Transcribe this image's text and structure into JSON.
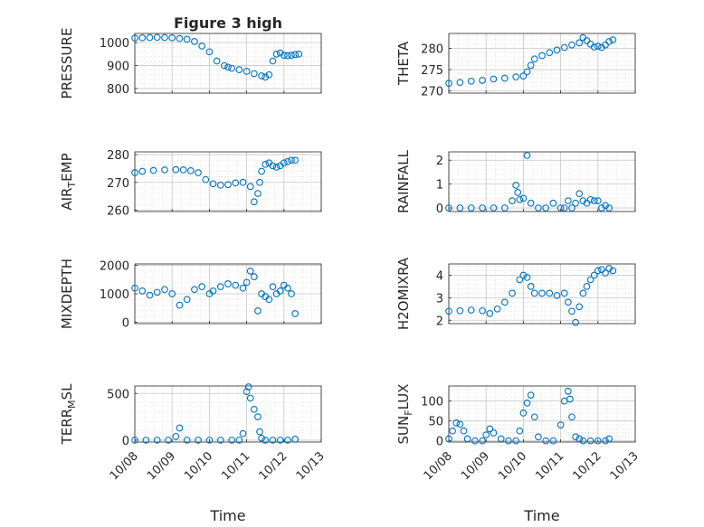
{
  "figure": {
    "title": "Figure 3 high",
    "xlabel": "Time",
    "marker_color": "#0072BD",
    "x_tick_labels": [
      "10/08",
      "10/09",
      "10/10",
      "10/11",
      "10/12",
      "10/13"
    ]
  },
  "chart_data": [
    {
      "type": "scatter",
      "title": "Figure 3 high",
      "ylabel": "PRESSURE",
      "ylim": [
        780,
        1040
      ],
      "yticks": [
        800,
        900,
        1000
      ],
      "xlim": [
        0,
        5
      ],
      "grid": true,
      "x": [
        0.0,
        0.2,
        0.4,
        0.6,
        0.8,
        1.0,
        1.2,
        1.4,
        1.6,
        1.8,
        2.0,
        2.2,
        2.4,
        2.5,
        2.6,
        2.8,
        3.0,
        3.2,
        3.4,
        3.5,
        3.6,
        3.7,
        3.8,
        3.9,
        4.0,
        4.1,
        4.2,
        4.3,
        4.4
      ],
      "y": [
        1020,
        1021,
        1022,
        1023,
        1022,
        1021,
        1018,
        1015,
        1005,
        985,
        960,
        920,
        900,
        893,
        888,
        882,
        875,
        865,
        855,
        850,
        860,
        920,
        950,
        955,
        945,
        943,
        945,
        948,
        950
      ]
    },
    {
      "type": "scatter",
      "title": "",
      "ylabel": "THETA",
      "ylim": [
        269.5,
        283.5
      ],
      "yticks": [
        270,
        275,
        280
      ],
      "xlim": [
        0,
        5
      ],
      "grid": true,
      "x": [
        0.0,
        0.3,
        0.6,
        0.9,
        1.2,
        1.5,
        1.8,
        2.0,
        2.1,
        2.2,
        2.3,
        2.5,
        2.7,
        2.9,
        3.1,
        3.3,
        3.5,
        3.6,
        3.7,
        3.8,
        3.9,
        4.0,
        4.1,
        4.2,
        4.3,
        4.4
      ],
      "y": [
        271.8,
        272.0,
        272.3,
        272.5,
        272.8,
        273.0,
        273.3,
        273.5,
        274.5,
        276.0,
        277.5,
        278.3,
        279.0,
        279.6,
        280.2,
        280.8,
        281.3,
        282.5,
        281.8,
        281.0,
        280.3,
        280.5,
        280.2,
        280.8,
        281.6,
        282.0
      ]
    },
    {
      "type": "scatter",
      "title": "",
      "ylabel": "AIR_TEMP",
      "ylim": [
        259.5,
        281
      ],
      "yticks": [
        260,
        270,
        280
      ],
      "xlim": [
        0,
        5
      ],
      "grid": true,
      "x": [
        0.0,
        0.2,
        0.5,
        0.8,
        1.1,
        1.3,
        1.5,
        1.7,
        1.9,
        2.1,
        2.3,
        2.5,
        2.7,
        2.9,
        3.1,
        3.2,
        3.3,
        3.35,
        3.4,
        3.5,
        3.6,
        3.7,
        3.8,
        3.9,
        4.0,
        4.1,
        4.2,
        4.3
      ],
      "y": [
        273.5,
        274.0,
        274.3,
        274.5,
        274.6,
        274.5,
        274.2,
        273.5,
        271.0,
        269.5,
        269.0,
        269.2,
        269.8,
        270.0,
        268.5,
        263.0,
        266.0,
        270.0,
        274.0,
        276.5,
        277.0,
        276.0,
        275.5,
        276.0,
        277.0,
        277.5,
        278.0,
        278.0
      ]
    },
    {
      "type": "scatter",
      "title": "",
      "ylabel": "RAINFALL",
      "ylim": [
        -0.15,
        2.35
      ],
      "yticks": [
        0,
        1,
        2
      ],
      "xlim": [
        0,
        5
      ],
      "grid": true,
      "x": [
        0.0,
        0.3,
        0.6,
        0.9,
        1.2,
        1.5,
        1.7,
        1.8,
        1.85,
        1.9,
        2.0,
        2.1,
        2.2,
        2.4,
        2.6,
        2.8,
        3.0,
        3.1,
        3.2,
        3.3,
        3.4,
        3.5,
        3.6,
        3.7,
        3.8,
        3.9,
        4.0,
        4.1,
        4.2,
        4.3
      ],
      "y": [
        0,
        0,
        0,
        0,
        0,
        0,
        0.3,
        0.95,
        0.65,
        0.35,
        0.4,
        2.2,
        0.2,
        0,
        0,
        0.2,
        0,
        0,
        0.3,
        0,
        0.2,
        0.6,
        0.3,
        0.2,
        0.35,
        0.3,
        0.3,
        0,
        0.1,
        0
      ]
    },
    {
      "type": "scatter",
      "title": "",
      "ylabel": "MIXDEPTH",
      "ylim": [
        -50,
        2050
      ],
      "yticks": [
        0,
        1000,
        2000
      ],
      "xlim": [
        0,
        5
      ],
      "grid": true,
      "x": [
        0.0,
        0.2,
        0.4,
        0.6,
        0.8,
        1.0,
        1.2,
        1.4,
        1.6,
        1.8,
        2.0,
        2.1,
        2.3,
        2.5,
        2.7,
        2.9,
        3.0,
        3.1,
        3.2,
        3.3,
        3.4,
        3.5,
        3.6,
        3.7,
        3.8,
        3.9,
        4.0,
        4.1,
        4.2,
        4.3
      ],
      "y": [
        1200,
        1100,
        950,
        1050,
        1150,
        1000,
        600,
        800,
        1150,
        1250,
        1000,
        1100,
        1250,
        1350,
        1300,
        1200,
        1400,
        1800,
        1600,
        400,
        1000,
        900,
        800,
        1250,
        1000,
        1100,
        1300,
        1200,
        1000,
        300
      ]
    },
    {
      "type": "scatter",
      "title": "",
      "ylabel": "H2OMIXRA",
      "ylim": [
        1.85,
        4.5
      ],
      "yticks": [
        2,
        3,
        4
      ],
      "xlim": [
        0,
        5
      ],
      "grid": true,
      "x": [
        0.0,
        0.3,
        0.6,
        0.9,
        1.1,
        1.3,
        1.5,
        1.7,
        1.9,
        2.0,
        2.1,
        2.2,
        2.3,
        2.5,
        2.7,
        2.9,
        3.1,
        3.2,
        3.3,
        3.4,
        3.5,
        3.6,
        3.7,
        3.8,
        3.9,
        4.0,
        4.1,
        4.2,
        4.3,
        4.4
      ],
      "y": [
        2.4,
        2.42,
        2.45,
        2.42,
        2.3,
        2.5,
        2.8,
        3.2,
        3.8,
        4.0,
        3.9,
        3.5,
        3.2,
        3.2,
        3.2,
        3.1,
        3.2,
        2.8,
        2.4,
        1.9,
        2.6,
        3.2,
        3.5,
        3.8,
        4.0,
        4.2,
        4.25,
        4.1,
        4.3,
        4.2
      ]
    },
    {
      "type": "scatter",
      "title": "",
      "ylabel": "TERR_MSL",
      "ylim": [
        -20,
        580
      ],
      "yticks": [
        0,
        500
      ],
      "xlim": [
        0,
        5
      ],
      "grid": true,
      "x": [
        0.0,
        0.3,
        0.6,
        0.9,
        1.1,
        1.2,
        1.4,
        1.7,
        2.0,
        2.3,
        2.6,
        2.8,
        2.9,
        3.0,
        3.05,
        3.1,
        3.2,
        3.3,
        3.35,
        3.4,
        3.5,
        3.7,
        3.9,
        4.1,
        4.3
      ],
      "y": [
        0,
        0,
        0,
        0,
        40,
        130,
        0,
        0,
        0,
        0,
        0,
        0,
        70,
        520,
        570,
        450,
        330,
        250,
        90,
        20,
        0,
        0,
        0,
        0,
        10
      ]
    },
    {
      "type": "scatter",
      "title": "",
      "ylabel": "SUN_FLUX",
      "ylim": [
        -3,
        138
      ],
      "yticks": [
        0,
        50,
        100
      ],
      "xlim": [
        0,
        5
      ],
      "grid": true,
      "x": [
        0.0,
        0.1,
        0.2,
        0.3,
        0.4,
        0.5,
        0.7,
        0.9,
        1.0,
        1.1,
        1.2,
        1.4,
        1.6,
        1.8,
        1.9,
        2.0,
        2.1,
        2.2,
        2.3,
        2.4,
        2.6,
        2.8,
        3.0,
        3.1,
        3.2,
        3.25,
        3.3,
        3.4,
        3.5,
        3.6,
        3.8,
        4.0,
        4.2,
        4.3
      ],
      "y": [
        5,
        25,
        45,
        42,
        25,
        5,
        0,
        0,
        15,
        30,
        20,
        5,
        0,
        0,
        25,
        70,
        95,
        115,
        60,
        10,
        0,
        0,
        40,
        100,
        125,
        105,
        60,
        10,
        5,
        0,
        0,
        0,
        0,
        5
      ]
    }
  ]
}
